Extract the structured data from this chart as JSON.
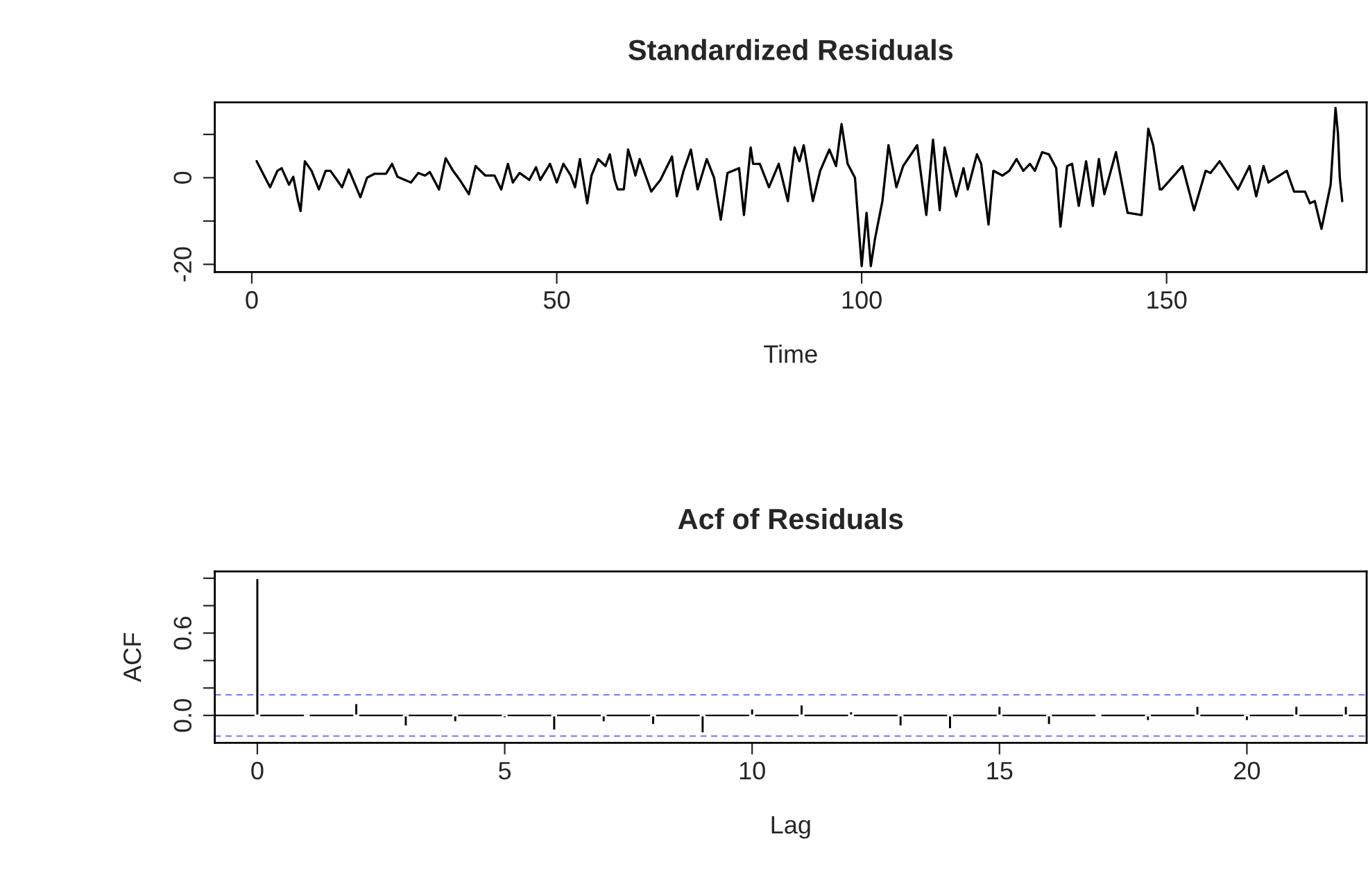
{
  "chart_data": [
    {
      "type": "line",
      "title": "Standardized Residuals",
      "xlabel": "Time",
      "grid": false,
      "legend": false,
      "x": [
        0.8,
        3.0,
        4.2,
        4.9,
        6.1,
        6.8,
        7.6,
        8.0,
        8.7,
        9.8,
        11.0,
        12.1,
        12.9,
        14.8,
        15.9,
        17.8,
        18.9,
        20.1,
        22.0,
        23.0,
        23.9,
        26.1,
        27.3,
        28.4,
        29.2,
        30.7,
        31.8,
        33.0,
        34.1,
        35.6,
        36.7,
        38.3,
        39.8,
        40.9,
        42.0,
        42.8,
        43.9,
        45.5,
        46.6,
        47.3,
        48.9,
        50.0,
        51.1,
        52.3,
        53.0,
        53.8,
        55.0,
        55.7,
        56.8,
        58.0,
        58.7,
        59.5,
        60.0,
        61.0,
        61.7,
        62.5,
        62.9,
        63.6,
        65.5,
        67.0,
        68.9,
        69.7,
        70.8,
        72.0,
        73.1,
        74.6,
        75.8,
        76.9,
        78.0,
        79.9,
        80.7,
        81.8,
        82.2,
        83.3,
        84.8,
        86.4,
        87.9,
        89.0,
        89.8,
        90.5,
        92.0,
        93.2,
        94.7,
        95.8,
        96.7,
        97.7,
        98.9,
        100.0,
        100.8,
        101.5,
        102.2,
        103.4,
        104.4,
        105.7,
        106.8,
        109.1,
        110.6,
        111.7,
        112.8,
        113.6,
        115.5,
        116.7,
        117.4,
        118.9,
        119.6,
        120.8,
        121.6,
        123.1,
        124.2,
        125.4,
        126.5,
        127.6,
        128.4,
        129.6,
        130.7,
        131.9,
        132.6,
        133.7,
        134.5,
        135.6,
        136.8,
        137.9,
        138.9,
        139.8,
        141.7,
        143.6,
        145.9,
        147.0,
        147.8,
        148.9,
        149.2,
        152.6,
        154.5,
        156.4,
        157.2,
        158.7,
        161.7,
        163.6,
        164.7,
        165.9,
        166.7,
        169.7,
        170.9,
        172.7,
        173.5,
        174.3,
        175.4,
        176.9,
        177.7,
        178.1,
        178.4,
        178.8
      ],
      "series": [
        {
          "color": "#000000",
          "values": [
            3.8,
            -2.2,
            1.6,
            2.2,
            -1.6,
            0.2,
            -5.4,
            -7.7,
            3.8,
            1.6,
            -2.7,
            1.6,
            1.6,
            -2.2,
            1.9,
            -4.5,
            0,
            0.9,
            0.9,
            3.2,
            0.2,
            -1.1,
            1.1,
            0.5,
            1.3,
            -2.7,
            4.5,
            1.6,
            -0.5,
            -3.8,
            2.7,
            0.5,
            0.5,
            -2.7,
            3.2,
            -1.1,
            1.1,
            -0.5,
            2.4,
            -0.5,
            3.2,
            -1.1,
            3.2,
            0.5,
            -2.2,
            4.3,
            -5.9,
            0.5,
            4.3,
            2.7,
            5.4,
            -0.5,
            -2.7,
            -2.7,
            6.5,
            2.7,
            0.5,
            4.3,
            -3.2,
            -0.5,
            4.9,
            -4.3,
            1.6,
            6.5,
            -2.7,
            4.3,
            0,
            -9.7,
            1.1,
            2.2,
            -8.6,
            7.0,
            3.2,
            3.2,
            -2.2,
            3.2,
            -5.4,
            7.0,
            3.8,
            7.5,
            -5.4,
            1.6,
            6.5,
            2.7,
            12.4,
            3.2,
            0,
            -20.4,
            -8.1,
            -20.4,
            -14.0,
            -5.4,
            7.5,
            -2.2,
            2.7,
            7.5,
            -8.6,
            8.8,
            -7.5,
            7.0,
            -4.3,
            2.2,
            -2.7,
            5.4,
            3.2,
            -10.8,
            1.6,
            0.5,
            1.6,
            4.3,
            1.6,
            3.2,
            1.6,
            5.9,
            5.4,
            2.2,
            -11.3,
            2.7,
            3.2,
            -6.5,
            3.8,
            -6.5,
            4.3,
            -3.8,
            5.9,
            -8.1,
            -8.6,
            11.3,
            7.5,
            -2.7,
            -2.7,
            2.7,
            -7.5,
            1.6,
            1.1,
            3.8,
            -2.7,
            2.7,
            -4.3,
            2.7,
            -1.1,
            1.6,
            -3.2,
            -3.2,
            -5.9,
            -5.4,
            -11.8,
            -1.6,
            16.1,
            10.2,
            0,
            -5.4
          ]
        }
      ],
      "xlim": [
        -6.07,
        182.8
      ],
      "xticks": [
        0,
        50,
        100,
        150
      ],
      "ylim": [
        -21.8,
        17.4
      ],
      "yticks": [
        -20,
        {
          "value": -10,
          "label": null
        },
        0,
        {
          "value": 10,
          "label": null
        }
      ]
    },
    {
      "type": "bar",
      "title": "Acf of Residuals",
      "xlabel": "Lag",
      "ylabel": "ACF",
      "grid": false,
      "legend": false,
      "x": [
        0,
        1,
        2,
        3,
        4,
        5,
        6,
        7,
        8,
        9,
        10,
        11,
        12,
        13,
        14,
        15,
        16,
        17,
        18,
        19,
        20,
        21,
        22
      ],
      "series": [
        {
          "color": "#000000",
          "values": [
            1.0,
            -0.01,
            0.09,
            -0.08,
            -0.05,
            -0.02,
            -0.11,
            -0.05,
            -0.07,
            -0.13,
            0.05,
            0.08,
            0.03,
            -0.08,
            -0.1,
            0.07,
            -0.07,
            0.01,
            -0.04,
            0.07,
            -0.04,
            0.07,
            0.07
          ]
        }
      ],
      "ref_lines": [
        {
          "axis": "y",
          "value": 0,
          "color": "#000000",
          "line_style": "solid"
        },
        {
          "axis": "y",
          "value": 0.15,
          "color": "#8080ff",
          "line_style": "dashed"
        },
        {
          "axis": "y",
          "value": -0.15,
          "color": "#8080ff",
          "line_style": "dashed"
        }
      ],
      "xlim": [
        -0.86,
        22.42
      ],
      "xticks": [
        0,
        5,
        10,
        15,
        20
      ],
      "ylim": [
        -0.2,
        1.05
      ],
      "yticks": [
        {
          "value": 0,
          "label": "0.0"
        },
        {
          "value": 0.2,
          "label": null
        },
        {
          "value": 0.4,
          "label": null
        },
        {
          "value": 0.6,
          "label": "0.6"
        },
        {
          "value": 0.8,
          "label": null
        },
        {
          "value": 1.0,
          "label": null
        }
      ]
    }
  ]
}
